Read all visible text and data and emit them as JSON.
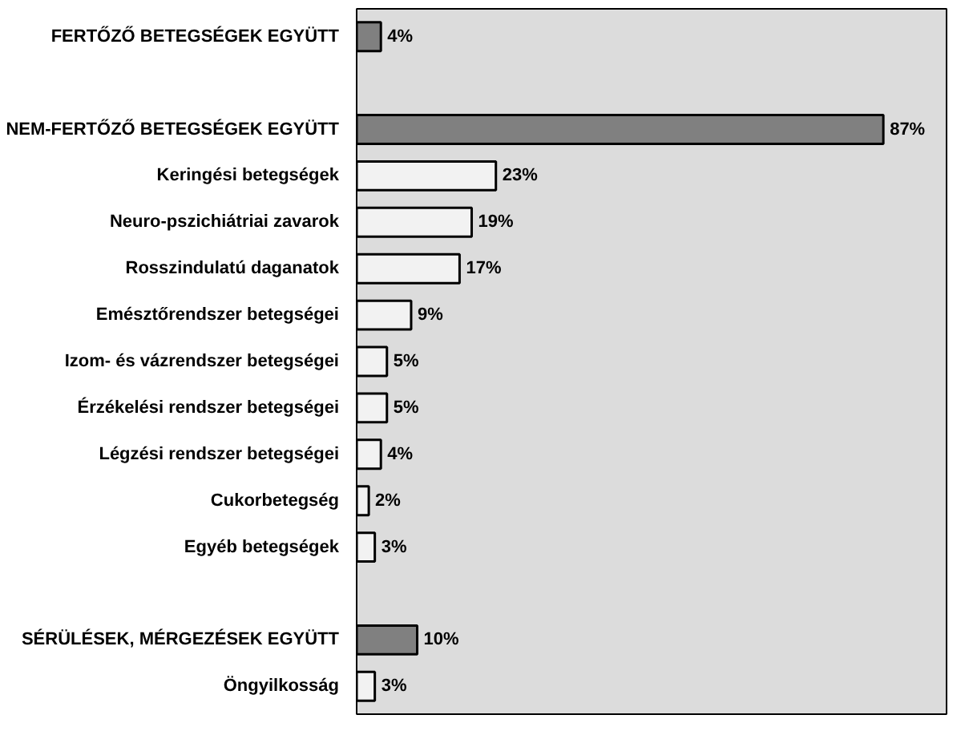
{
  "chart_data": {
    "type": "bar",
    "orientation": "horizontal",
    "data_labels": true,
    "tick_labels": "y",
    "categories": [
      "FERTŐZŐ BETEGSÉGEK EGYÜTT",
      null,
      "NEM-FERTŐZŐ BETEGSÉGEK EGYÜTT",
      "Keringési betegségek",
      "Neuro-pszichiátriai zavarok",
      "Rosszindulatú daganatok",
      "Emésztőrendszer betegségei",
      "Izom- és vázrendszer betegségei",
      "Érzékelési rendszer betegségei",
      "Légzési rendszer betegségei",
      "Cukorbetegség",
      "Egyéb betegségek",
      null,
      "SÉRÜLÉSEK, MÉRGEZÉSEK EGYÜTT",
      "Öngyilkosság"
    ],
    "values": [
      4,
      null,
      87,
      23,
      19,
      17,
      9,
      5,
      5,
      4,
      2,
      3,
      null,
      10,
      3
    ],
    "value_labels": [
      "4%",
      null,
      "87%",
      "23%",
      "19%",
      "17%",
      "9%",
      "5%",
      "5%",
      "4%",
      "2%",
      "3%",
      null,
      "10%",
      "3%"
    ],
    "colors": [
      "#808080",
      null,
      "#808080",
      "#f2f2f2",
      "#f2f2f2",
      "#f2f2f2",
      "#f2f2f2",
      "#f2f2f2",
      "#f2f2f2",
      "#f2f2f2",
      "#f2f2f2",
      "#f2f2f2",
      null,
      "#808080",
      "#f2f2f2"
    ]
  }
}
